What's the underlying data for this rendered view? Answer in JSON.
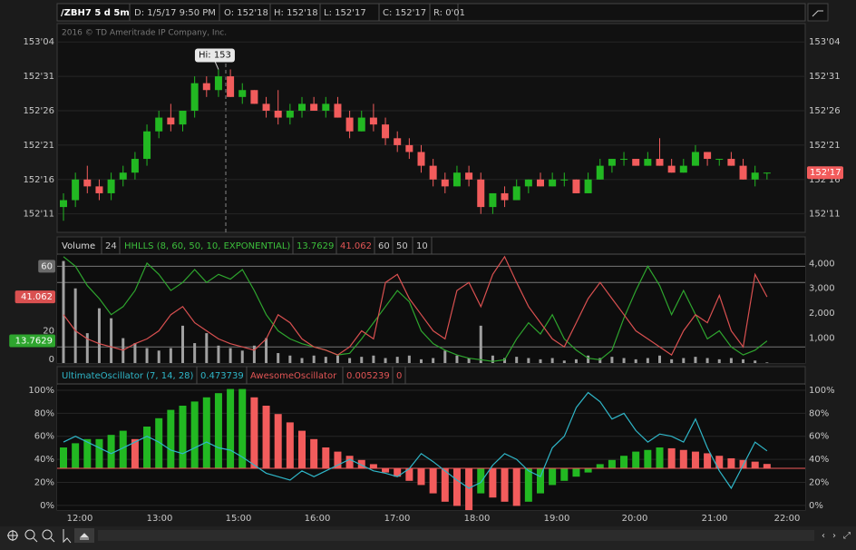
{
  "toolbar": {
    "symbol": "/ZBH7 5 d 5m",
    "date": "D: 1/5/17 9:50 PM",
    "open": "O: 152'18",
    "high": "H: 152'18",
    "low": "L: 152'17",
    "close": "C: 152'17",
    "range": "R: 0'01"
  },
  "chart_data": [
    {
      "type": "candlestick",
      "watermark": "2016 © TD Ameritrade IP Company, Inc.",
      "annotation": "Hi: 153",
      "last_price": {
        "value": 152.53125,
        "label": "152'17"
      },
      "ylim": [
        152.26,
        153.2
      ],
      "yticks": [
        {
          "value": 152.34375,
          "label": "152'11"
        },
        {
          "value": 152.5,
          "label": "152'16"
        },
        {
          "value": 152.65625,
          "label": "152'21"
        },
        {
          "value": 152.8125,
          "label": "152'26"
        },
        {
          "value": 152.96875,
          "label": "152'31"
        },
        {
          "value": 153.125,
          "label": "153'04"
        }
      ],
      "up_color": "#22b822",
      "down_color": "#f25c5c",
      "open": [
        152.375,
        152.40625,
        152.5,
        152.46875,
        152.4375,
        152.5,
        152.53125,
        152.59375,
        152.71875,
        152.78125,
        152.75,
        152.8125,
        152.9375,
        152.90625,
        152.96875,
        152.875,
        152.90625,
        152.84375,
        152.8125,
        152.78125,
        152.8125,
        152.84375,
        152.8125,
        152.84375,
        152.78125,
        152.71875,
        152.78125,
        152.75,
        152.6875,
        152.65625,
        152.625,
        152.5625,
        152.5,
        152.46875,
        152.53125,
        152.5,
        152.375,
        152.4375,
        152.40625,
        152.46875,
        152.5,
        152.46875,
        152.5,
        152.5,
        152.4375,
        152.5,
        152.5625,
        152.59375,
        152.59375,
        152.5625,
        152.59375,
        152.5625,
        152.53125,
        152.5625,
        152.625,
        152.59375,
        152.59375,
        152.5625,
        152.5,
        152.53125
      ],
      "high": [
        152.4375,
        152.53125,
        152.5625,
        152.5,
        152.53125,
        152.5625,
        152.625,
        152.75,
        152.8125,
        152.84375,
        152.8125,
        152.96875,
        152.96875,
        153,
        153,
        152.9375,
        152.90625,
        152.875,
        152.90625,
        152.84375,
        152.875,
        152.875,
        152.875,
        152.875,
        152.8125,
        152.8125,
        152.84375,
        152.78125,
        152.71875,
        152.6875,
        152.65625,
        152.59375,
        152.53125,
        152.5625,
        152.5625,
        152.53125,
        152.4375,
        152.46875,
        152.5,
        152.5,
        152.53125,
        152.53125,
        152.53125,
        152.5,
        152.53125,
        152.59375,
        152.59375,
        152.625,
        152.59375,
        152.625,
        152.6875,
        152.59375,
        152.59375,
        152.65625,
        152.625,
        152.59375,
        152.625,
        152.59375,
        152.5625,
        152.53125
      ],
      "low": [
        152.3125,
        152.375,
        152.4375,
        152.40625,
        152.40625,
        152.46875,
        152.5,
        152.5625,
        152.6875,
        152.71875,
        152.71875,
        152.78125,
        152.875,
        152.875,
        152.875,
        152.84375,
        152.84375,
        152.78125,
        152.75,
        152.75,
        152.78125,
        152.8125,
        152.78125,
        152.78125,
        152.6875,
        152.71875,
        152.71875,
        152.65625,
        152.625,
        152.59375,
        152.53125,
        152.46875,
        152.4375,
        152.46875,
        152.46875,
        152.34375,
        152.34375,
        152.375,
        152.40625,
        152.4375,
        152.46875,
        152.46875,
        152.46875,
        152.4375,
        152.4375,
        152.5,
        152.53125,
        152.5625,
        152.5625,
        152.5625,
        152.5625,
        152.53125,
        152.53125,
        152.5625,
        152.5625,
        152.5625,
        152.5625,
        152.5,
        152.46875,
        152.5
      ],
      "close": [
        152.40625,
        152.5,
        152.46875,
        152.4375,
        152.5,
        152.53125,
        152.59375,
        152.71875,
        152.78125,
        152.75,
        152.8125,
        152.9375,
        152.90625,
        152.96875,
        152.875,
        152.90625,
        152.84375,
        152.8125,
        152.78125,
        152.8125,
        152.84375,
        152.8125,
        152.84375,
        152.78125,
        152.71875,
        152.78125,
        152.75,
        152.6875,
        152.65625,
        152.625,
        152.5625,
        152.5,
        152.46875,
        152.53125,
        152.5,
        152.375,
        152.4375,
        152.40625,
        152.46875,
        152.5,
        152.46875,
        152.5,
        152.5,
        152.4375,
        152.5,
        152.5625,
        152.59375,
        152.59375,
        152.5625,
        152.59375,
        152.5625,
        152.53125,
        152.5625,
        152.625,
        152.59375,
        152.59375,
        152.5625,
        152.5,
        152.53125,
        152.53125
      ]
    },
    {
      "type": "volume-study",
      "title": "Volume",
      "study": "HHLLS (8, 60, 50, 10, EXPONENTIAL)",
      "volume": {
        "color": "#a0a0a0",
        "values": [
          4100,
          3000,
          1200,
          2200,
          1800,
          1000,
          800,
          600,
          500,
          600,
          1500,
          800,
          1200,
          700,
          600,
          500,
          700,
          1000,
          400,
          300,
          200,
          300,
          250,
          300,
          200,
          250,
          300,
          200,
          250,
          300,
          150,
          200,
          500,
          300,
          200,
          1500,
          300,
          200,
          250,
          200,
          150,
          200,
          100,
          150,
          300,
          200,
          250,
          200,
          150,
          200,
          300,
          150,
          200,
          250,
          200,
          150,
          200,
          150,
          100,
          24
        ]
      },
      "hhlls_high": {
        "color": "#2ea52e",
        "values": [
          66,
          60,
          48,
          40,
          30,
          35,
          45,
          62,
          55,
          45,
          50,
          58,
          50,
          55,
          52,
          58,
          45,
          30,
          20,
          15,
          12,
          10,
          8,
          5,
          6,
          15,
          25,
          35,
          45,
          38,
          20,
          12,
          8,
          5,
          3,
          2,
          1,
          2,
          15,
          25,
          18,
          30,
          15,
          8,
          3,
          2,
          8,
          28,
          45,
          60,
          48,
          30,
          45,
          30,
          15,
          20,
          10,
          5,
          8,
          13.7629
        ]
      },
      "hhlls_low": {
        "color": "#d95050",
        "values": [
          30,
          20,
          15,
          12,
          10,
          8,
          12,
          15,
          20,
          30,
          35,
          25,
          20,
          15,
          12,
          10,
          8,
          15,
          30,
          25,
          15,
          10,
          8,
          5,
          10,
          20,
          15,
          50,
          55,
          40,
          30,
          20,
          15,
          45,
          50,
          35,
          55,
          66,
          50,
          35,
          25,
          15,
          10,
          25,
          40,
          50,
          40,
          30,
          20,
          15,
          10,
          5,
          20,
          30,
          25,
          42,
          20,
          10,
          55,
          41.062
        ]
      },
      "levels": [
        60,
        50,
        10
      ],
      "ylim": [
        0,
        4340
      ],
      "yticks": [
        {
          "value": 1000,
          "label": "1,000"
        },
        {
          "value": 2000,
          "label": "2,000"
        },
        {
          "value": 3000,
          "label": "3,000"
        },
        {
          "value": 4000,
          "label": "4,000"
        }
      ],
      "y2lim": [
        0,
        67
      ],
      "y2ticks": [
        0,
        20
      ]
    },
    {
      "type": "oscillator",
      "uo": {
        "name": "UltimateOscillator (7, 14, 28)",
        "color": "#2fb6c8",
        "values": [
          0.55,
          0.6,
          0.55,
          0.5,
          0.45,
          0.5,
          0.55,
          0.6,
          0.55,
          0.48,
          0.45,
          0.5,
          0.55,
          0.5,
          0.48,
          0.42,
          0.35,
          0.28,
          0.25,
          0.22,
          0.3,
          0.25,
          0.3,
          0.35,
          0.4,
          0.35,
          0.3,
          0.28,
          0.25,
          0.32,
          0.45,
          0.38,
          0.3,
          0.22,
          0.15,
          0.2,
          0.35,
          0.45,
          0.4,
          0.3,
          0.25,
          0.5,
          0.6,
          0.85,
          0.98,
          0.9,
          0.75,
          0.8,
          0.65,
          0.55,
          0.62,
          0.6,
          0.55,
          0.75,
          0.5,
          0.3,
          0.15,
          0.35,
          0.55,
          0.473739
        ]
      },
      "ao": {
        "name": "AwesomeOscillator",
        "up_color": "#22b822",
        "down_color": "#f25c5c",
        "values": [
          0.025,
          0.03,
          0.035,
          0.035,
          0.04,
          0.045,
          0.035,
          0.05,
          0.06,
          0.07,
          0.075,
          0.08,
          0.085,
          0.09,
          0.095,
          0.095,
          0.085,
          0.075,
          0.065,
          0.055,
          0.045,
          0.035,
          0.025,
          0.02,
          0.015,
          0.01,
          0.005,
          -0.005,
          -0.01,
          -0.015,
          -0.02,
          -0.03,
          -0.04,
          -0.045,
          -0.05,
          -0.03,
          -0.035,
          -0.04,
          -0.045,
          -0.04,
          -0.03,
          -0.02,
          -0.015,
          -0.01,
          -0.005,
          0.005,
          0.01,
          0.015,
          0.02,
          0.022,
          0.025,
          0.024,
          0.022,
          0.02,
          0.018,
          0.015,
          0.012,
          0.01,
          0.008,
          0.005239
        ]
      },
      "ao_signal": 0,
      "ylim": [
        -0.04,
        1.047
      ],
      "yticks": [
        {
          "value": 0,
          "label": "0%"
        },
        {
          "value": 0.2,
          "label": "20%"
        },
        {
          "value": 0.4,
          "label": "40%"
        },
        {
          "value": 0.6,
          "label": "60%"
        },
        {
          "value": 0.8,
          "label": "80%"
        },
        {
          "value": 1,
          "label": "100%"
        }
      ],
      "y2lim": [
        -0.05,
        0.1
      ]
    }
  ],
  "x_axis": {
    "labels": [
      "12:00",
      "13:00",
      "15:00",
      "16:00",
      "17:00",
      "18:00",
      "19:00",
      "20:00",
      "21:00",
      "22:00"
    ]
  }
}
